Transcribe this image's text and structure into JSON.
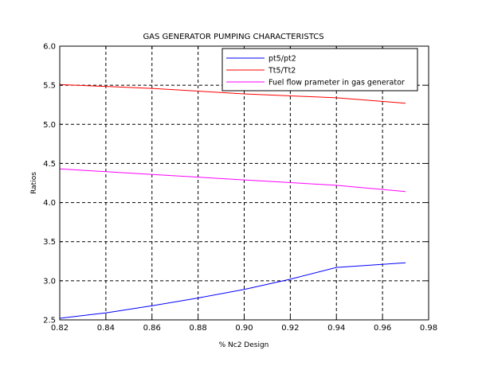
{
  "chart_data": {
    "type": "line",
    "title": "GAS GENERATOR PUMPING CHARACTERISTCS",
    "xlabel": "% Nc2 Design",
    "ylabel": "Ratios",
    "xlim": [
      0.82,
      0.98
    ],
    "ylim": [
      2.5,
      6.0
    ],
    "x_ticks": [
      "0.82",
      "0.84",
      "0.86",
      "0.88",
      "0.90",
      "0.92",
      "0.94",
      "0.96",
      "0.98"
    ],
    "y_ticks": [
      "2.5",
      "3.0",
      "3.5",
      "4.0",
      "4.5",
      "5.0",
      "5.5",
      "6.0"
    ],
    "grid": true,
    "grid_style": "dashed",
    "legend_position": "top-right",
    "series": [
      {
        "name": "pt5/pt2",
        "color": "#0000ff",
        "x": [
          0.82,
          0.84,
          0.86,
          0.88,
          0.9,
          0.92,
          0.94,
          0.97
        ],
        "y": [
          2.52,
          2.59,
          2.68,
          2.78,
          2.89,
          3.02,
          3.17,
          3.23
        ]
      },
      {
        "name": "Tt5/Tt2",
        "color": "#ff0000",
        "x": [
          0.82,
          0.86,
          0.9,
          0.94,
          0.97
        ],
        "y": [
          5.51,
          5.46,
          5.39,
          5.34,
          5.27
        ]
      },
      {
        "name": "Fuel flow prameter in gas generator",
        "color": "#ff00ff",
        "x": [
          0.82,
          0.86,
          0.9,
          0.94,
          0.97
        ],
        "y": [
          4.43,
          4.36,
          4.29,
          4.22,
          4.14
        ]
      }
    ]
  }
}
